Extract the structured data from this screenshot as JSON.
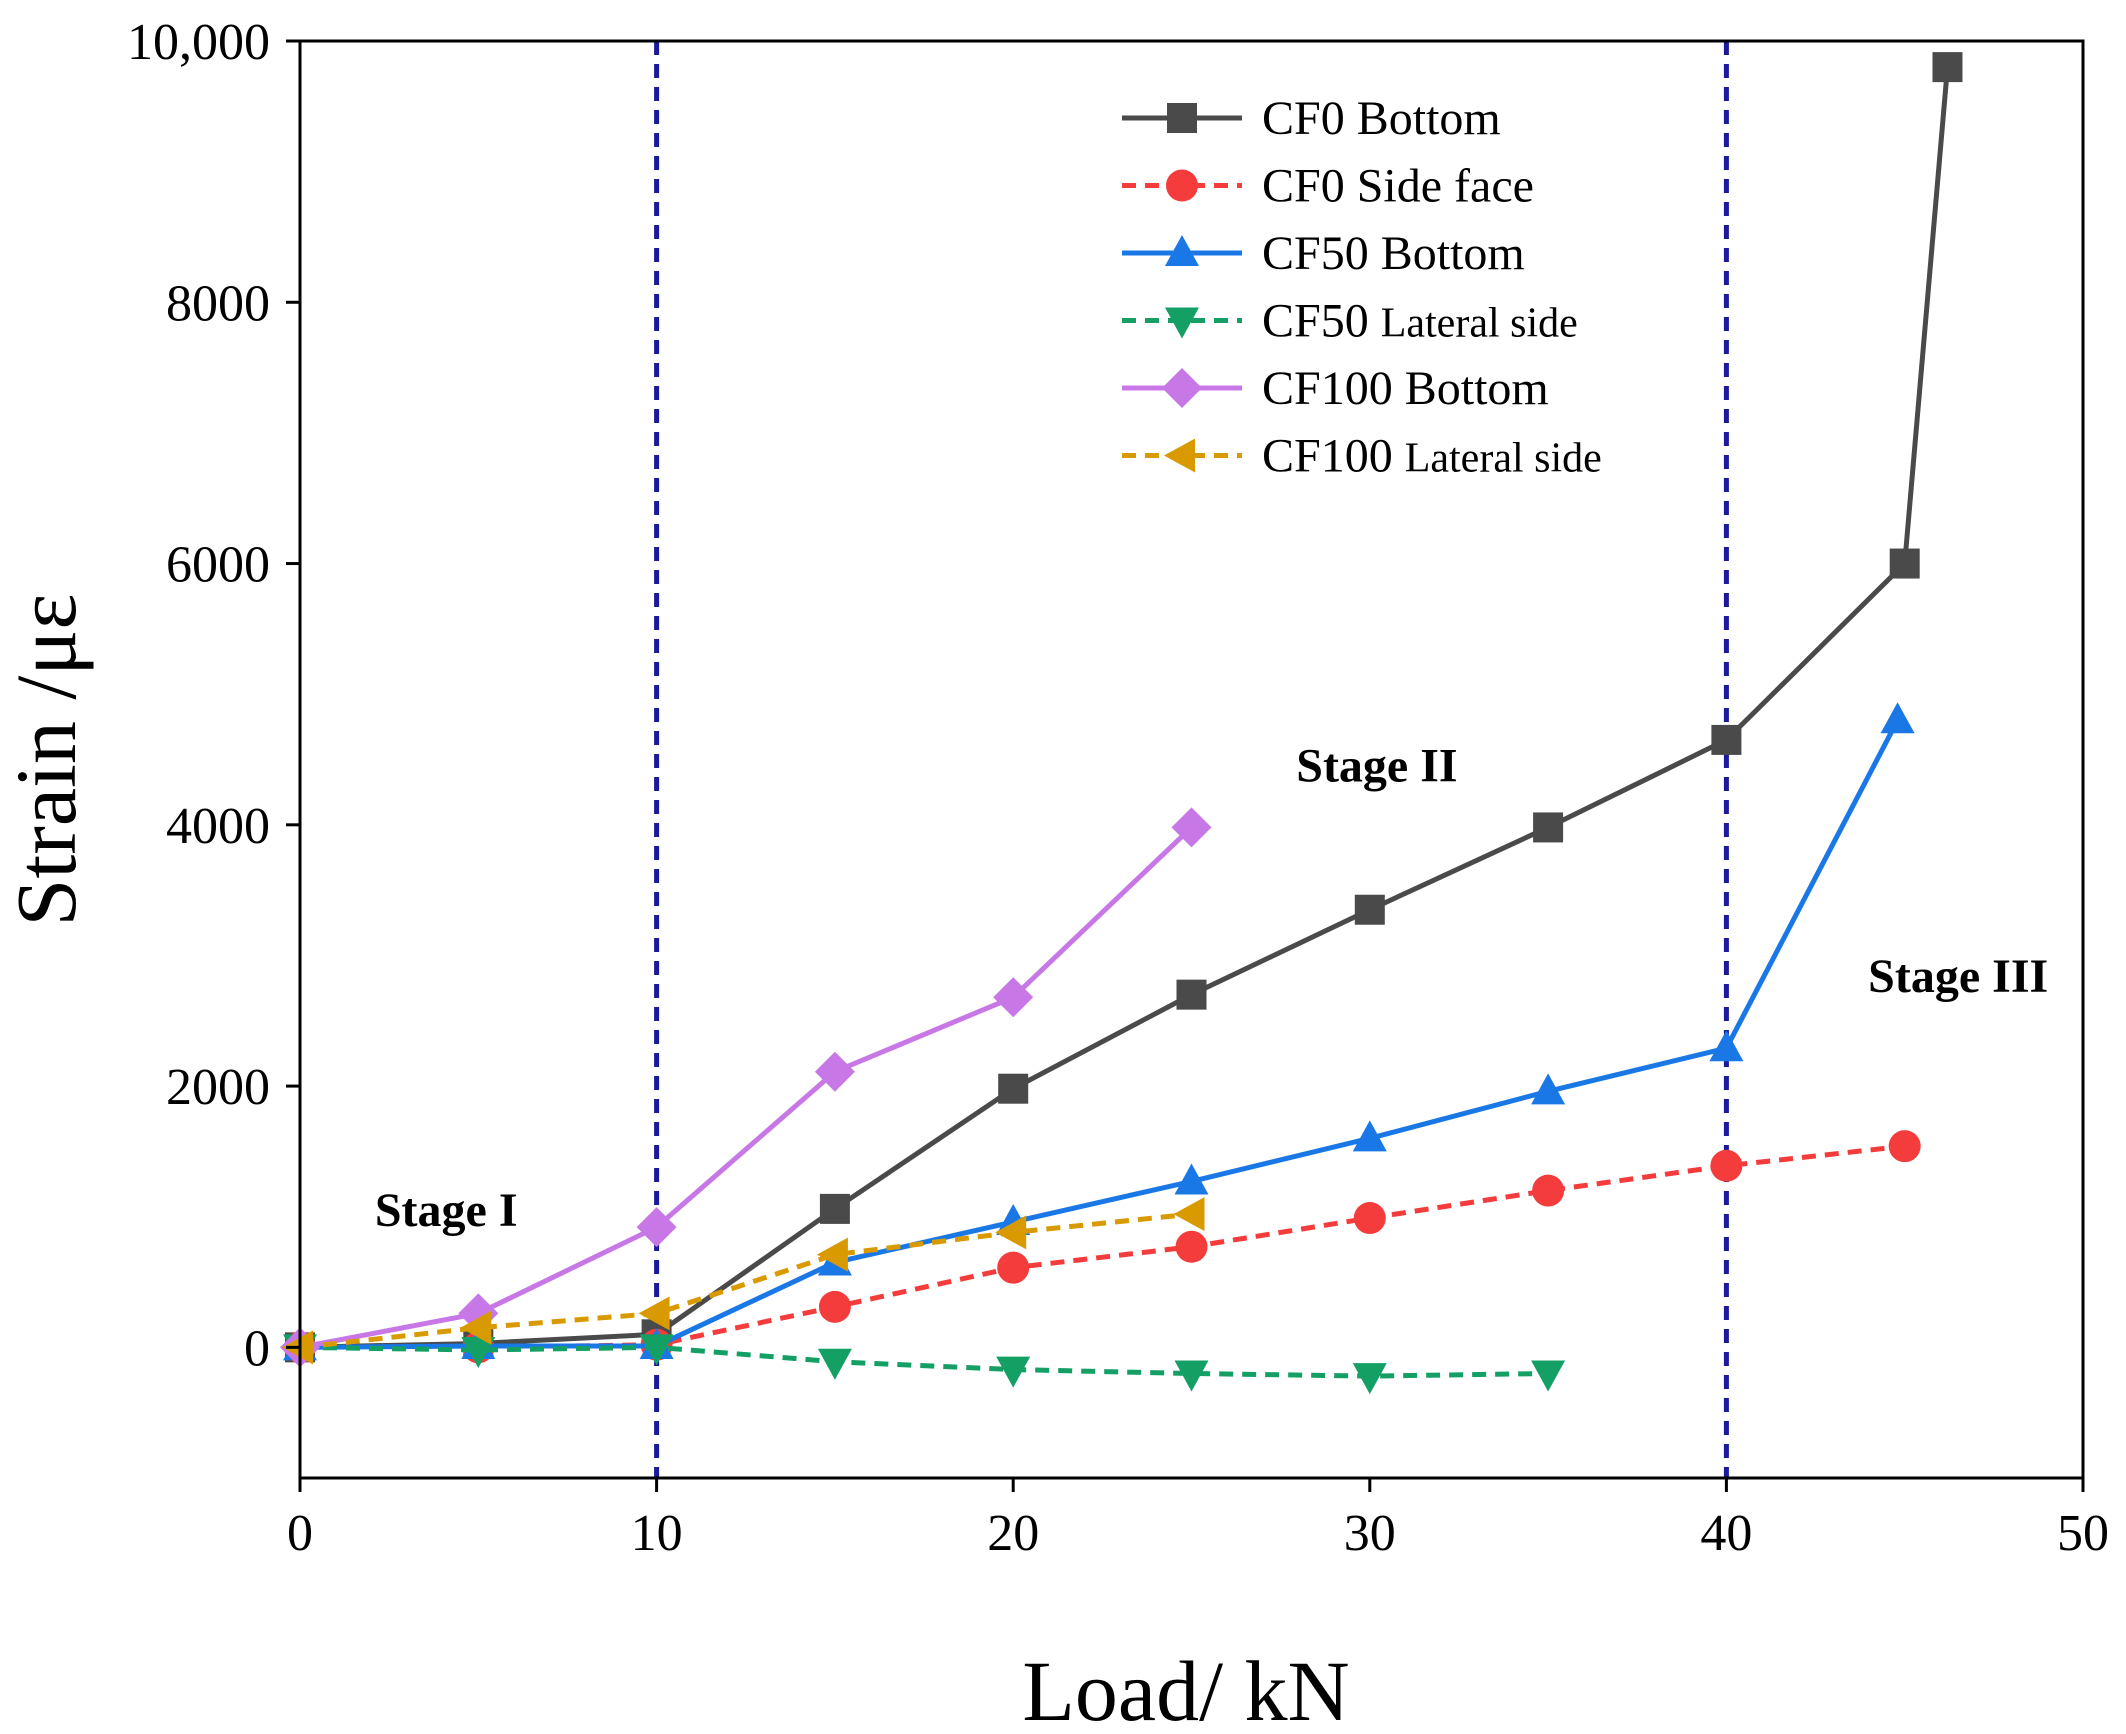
{
  "chart_data": {
    "type": "line",
    "xlabel": "Load/ kN",
    "ylabel": "Strain /με",
    "xlim": [
      0,
      50
    ],
    "ylim": [
      -1000,
      10000
    ],
    "xticks": [
      0,
      10,
      20,
      30,
      40,
      50
    ],
    "xtick_labels": [
      "0",
      "10",
      "20",
      "30",
      "40",
      "50"
    ],
    "yticks": [
      0,
      2000,
      4000,
      6000,
      8000,
      10000
    ],
    "ytick_labels": [
      "0",
      "2000",
      "4000",
      "6000",
      "8000",
      "10,000"
    ],
    "grid": false,
    "legend_position": "top-right",
    "vlines": [
      {
        "x": 10,
        "color": "#1a1a9a",
        "style": "dashed"
      },
      {
        "x": 40,
        "color": "#1a1a9a",
        "style": "dashed"
      }
    ],
    "annotations": [
      {
        "text": "Stage I",
        "x": 4.1,
        "y": 930
      },
      {
        "text": "Stage II",
        "x": 30.2,
        "y": 4330
      },
      {
        "text": "Stage III",
        "x": 46.5,
        "y": 2720
      }
    ],
    "series": [
      {
        "name": "CF0 Bottom",
        "name_main": "CF0 Bottom",
        "name_small": "",
        "color": "#4a4a4a",
        "dash": false,
        "marker": "square",
        "x": [
          0,
          5,
          10,
          15,
          20,
          25,
          30,
          35,
          40,
          45,
          46.2
        ],
        "y": [
          0,
          30,
          100,
          1060,
          1980,
          2700,
          3350,
          3980,
          4650,
          6000,
          9800
        ]
      },
      {
        "name": "CF0 Side face",
        "name_main": "CF0 Side face",
        "name_small": "",
        "color": "#f53c3c",
        "dash": true,
        "marker": "circle",
        "x": [
          0,
          5,
          10,
          15,
          20,
          25,
          30,
          35,
          40,
          45
        ],
        "y": [
          0,
          0,
          20,
          310,
          610,
          770,
          990,
          1200,
          1390,
          1540
        ]
      },
      {
        "name": "CF50 Bottom",
        "name_main": "CF50 Bottom",
        "name_small": "",
        "color": "#1a78e6",
        "dash": false,
        "marker": "triangle-up",
        "x": [
          0,
          5,
          10,
          15,
          20,
          25,
          30,
          35,
          40,
          44.8
        ],
        "y": [
          0,
          10,
          10,
          650,
          960,
          1270,
          1600,
          1960,
          2290,
          4800
        ]
      },
      {
        "name": "CF50 Lateral side",
        "name_main": "CF50",
        "name_small": "Lateral side",
        "color": "#14a064",
        "dash": true,
        "marker": "triangle-down",
        "x": [
          0,
          5,
          10,
          15,
          20,
          25,
          30,
          35
        ],
        "y": [
          0,
          -20,
          0,
          -110,
          -170,
          -200,
          -220,
          -200
        ]
      },
      {
        "name": "CF100 Bottom",
        "name_main": "CF100 Bottom",
        "name_small": "",
        "color": "#c878e6",
        "dash": false,
        "marker": "diamond",
        "x": [
          0,
          5,
          10,
          15,
          20,
          25
        ],
        "y": [
          0,
          260,
          920,
          2110,
          2680,
          3980
        ]
      },
      {
        "name": "CF100 Lateral side",
        "name_main": "CF100",
        "name_small": "Lateral side",
        "color": "#d99a00",
        "dash": true,
        "marker": "triangle-left",
        "x": [
          0,
          5,
          10,
          15,
          20,
          25
        ],
        "y": [
          0,
          150,
          260,
          710,
          880,
          1020
        ]
      }
    ]
  }
}
